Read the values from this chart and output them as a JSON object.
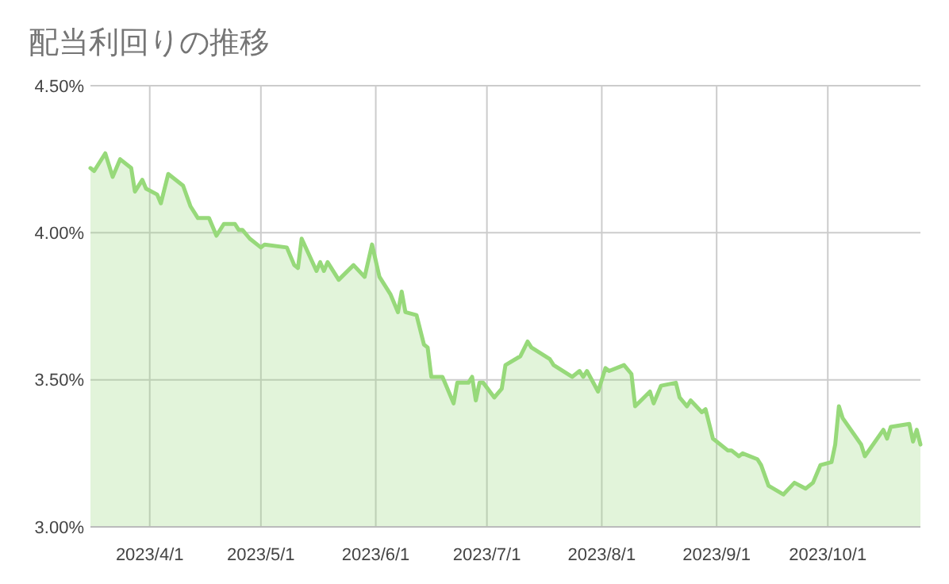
{
  "chart_data": {
    "type": "area",
    "title": "配当利回りの推移",
    "x": [
      "2023-03-16",
      "2023-03-17",
      "2023-03-20",
      "2023-03-22",
      "2023-03-24",
      "2023-03-27",
      "2023-03-28",
      "2023-03-30",
      "2023-03-31",
      "2023-04-03",
      "2023-04-04",
      "2023-04-06",
      "2023-04-10",
      "2023-04-12",
      "2023-04-14",
      "2023-04-17",
      "2023-04-19",
      "2023-04-21",
      "2023-04-24",
      "2023-04-25",
      "2023-04-26",
      "2023-04-28",
      "2023-05-01",
      "2023-05-02",
      "2023-05-08",
      "2023-05-10",
      "2023-05-11",
      "2023-05-12",
      "2023-05-16",
      "2023-05-17",
      "2023-05-18",
      "2023-05-19",
      "2023-05-22",
      "2023-05-26",
      "2023-05-29",
      "2023-05-31",
      "2023-06-02",
      "2023-06-05",
      "2023-06-07",
      "2023-06-08",
      "2023-06-09",
      "2023-06-12",
      "2023-06-14",
      "2023-06-15",
      "2023-06-16",
      "2023-06-19",
      "2023-06-20",
      "2023-06-22",
      "2023-06-23",
      "2023-06-26",
      "2023-06-27",
      "2023-06-28",
      "2023-06-29",
      "2023-06-30",
      "2023-07-03",
      "2023-07-05",
      "2023-07-06",
      "2023-07-10",
      "2023-07-12",
      "2023-07-13",
      "2023-07-18",
      "2023-07-19",
      "2023-07-24",
      "2023-07-26",
      "2023-07-27",
      "2023-07-28",
      "2023-07-31",
      "2023-08-02",
      "2023-08-03",
      "2023-08-07",
      "2023-08-09",
      "2023-08-10",
      "2023-08-14",
      "2023-08-15",
      "2023-08-17",
      "2023-08-21",
      "2023-08-22",
      "2023-08-24",
      "2023-08-25",
      "2023-08-28",
      "2023-08-29",
      "2023-08-31",
      "2023-09-04",
      "2023-09-05",
      "2023-09-07",
      "2023-09-08",
      "2023-09-12",
      "2023-09-13",
      "2023-09-15",
      "2023-09-19",
      "2023-09-22",
      "2023-09-25",
      "2023-09-27",
      "2023-09-29",
      "2023-10-02",
      "2023-10-03",
      "2023-10-04",
      "2023-10-05",
      "2023-10-10",
      "2023-10-11",
      "2023-10-16",
      "2023-10-17",
      "2023-10-18",
      "2023-10-23",
      "2023-10-24",
      "2023-10-25",
      "2023-10-26"
    ],
    "series": [
      {
        "color": "#97d97a",
        "values": [
          4.22,
          4.21,
          4.27,
          4.19,
          4.25,
          4.22,
          4.14,
          4.18,
          4.15,
          4.13,
          4.1,
          4.2,
          4.16,
          4.09,
          4.05,
          4.05,
          3.99,
          4.03,
          4.03,
          4.01,
          4.01,
          3.98,
          3.95,
          3.96,
          3.95,
          3.89,
          3.88,
          3.98,
          3.87,
          3.9,
          3.87,
          3.9,
          3.84,
          3.89,
          3.85,
          3.96,
          3.85,
          3.79,
          3.73,
          3.8,
          3.73,
          3.72,
          3.62,
          3.61,
          3.51,
          3.51,
          3.48,
          3.42,
          3.49,
          3.49,
          3.51,
          3.43,
          3.49,
          3.49,
          3.44,
          3.47,
          3.55,
          3.58,
          3.63,
          3.61,
          3.57,
          3.55,
          3.51,
          3.53,
          3.51,
          3.53,
          3.46,
          3.54,
          3.53,
          3.55,
          3.52,
          3.41,
          3.46,
          3.42,
          3.48,
          3.49,
          3.44,
          3.41,
          3.43,
          3.39,
          3.4,
          3.3,
          3.26,
          3.26,
          3.24,
          3.25,
          3.23,
          3.21,
          3.14,
          3.11,
          3.15,
          3.13,
          3.15,
          3.21,
          3.22,
          3.28,
          3.41,
          3.37,
          3.28,
          3.24,
          3.33,
          3.3,
          3.34,
          3.35,
          3.29,
          3.33,
          3.28
        ]
      }
    ],
    "xlim": [
      "2023-03-16",
      "2023-10-26"
    ],
    "xticks": [
      {
        "value": "2023-04-01",
        "label": "2023/4/1"
      },
      {
        "value": "2023-05-01",
        "label": "2023/5/1"
      },
      {
        "value": "2023-06-01",
        "label": "2023/6/1"
      },
      {
        "value": "2023-07-01",
        "label": "2023/7/1"
      },
      {
        "value": "2023-08-01",
        "label": "2023/8/1"
      },
      {
        "value": "2023-09-01",
        "label": "2023/9/1"
      },
      {
        "value": "2023-10-01",
        "label": "2023/10/1"
      }
    ],
    "ylim": [
      3.0,
      4.5
    ],
    "yticks": [
      {
        "value": 3.0,
        "label": "3.00%"
      },
      {
        "value": 3.5,
        "label": "3.50%"
      },
      {
        "value": 4.0,
        "label": "4.00%"
      },
      {
        "value": 4.5,
        "label": "4.50%"
      }
    ],
    "grid": true
  }
}
